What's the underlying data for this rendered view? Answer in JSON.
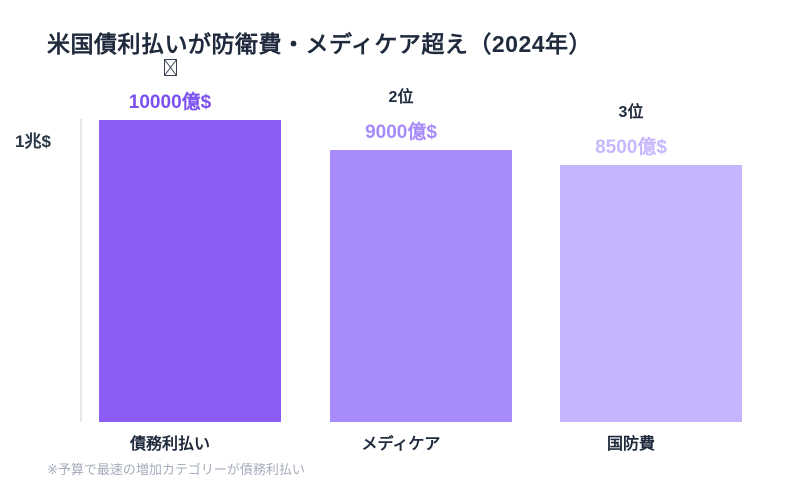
{
  "title": "米国債利払いが防衛費・メディケア超え（2024年）",
  "footnote": "※予算で最速の増加カテゴリーが債務利払い",
  "y_axis": {
    "label": "1兆$"
  },
  "colors": {
    "background": "#FFFFFF",
    "text_dark": "#1F2A3C",
    "axis_line": "#E5E7EB",
    "footnote_text": "#A6ACBB"
  },
  "chart_data": {
    "type": "bar",
    "title": "米国債利払いが防衛費・メディケア超え（2024年）",
    "categories": [
      "債務利払い",
      "メディケア",
      "国防費"
    ],
    "values": [
      10000,
      9000,
      8500
    ],
    "unit": "億$",
    "value_labels": [
      "10000億$",
      "9000億$",
      "8500億$"
    ],
    "rank_labels": [
      "",
      "2位",
      "3位"
    ],
    "rank1_icon": "missing-glyph-box-icon",
    "bar_colors": [
      "#8B5CF6",
      "#A78BFA",
      "#C4B5FD"
    ],
    "value_label_colors": [
      "#7C4FF0",
      "#A78BFA",
      "#C7B8FE"
    ],
    "xlabel": "",
    "ylabel": "1兆$",
    "ylim": [
      0,
      10000
    ],
    "y_reference": {
      "value": 10000,
      "label": "1兆$"
    },
    "grid": false,
    "legend": false,
    "annotation": "※予算で最速の増加カテゴリーが債務利払い"
  }
}
